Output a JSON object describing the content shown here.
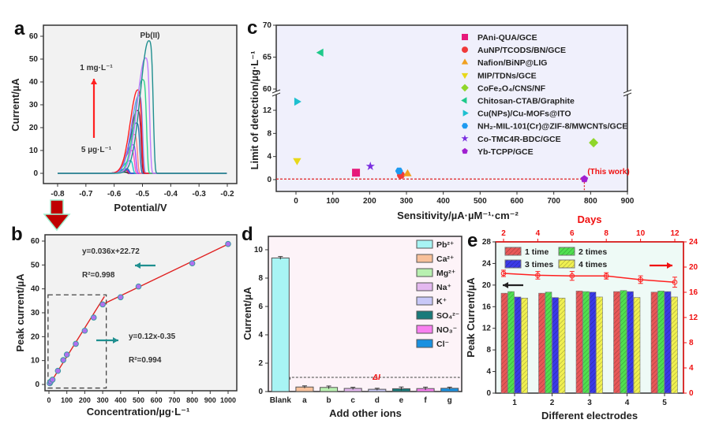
{
  "chart_data": [
    {
      "panel": "a",
      "type": "line",
      "title": "Pb(II)",
      "xlabel": "Potential/V",
      "ylabel": "Current/µA",
      "xlim": [
        -0.85,
        -0.18
      ],
      "ylim": [
        -5,
        65
      ],
      "xticks": [
        "-0.8",
        "-0.7",
        "-0.6",
        "-0.5",
        "-0.4",
        "-0.3",
        "-0.2"
      ],
      "yticks": [
        "0",
        "10",
        "20",
        "30",
        "40",
        "50",
        "60"
      ],
      "annotation_high": "1 mg·L⁻¹",
      "annotation_low": "5 µg·L⁻¹",
      "series": [
        {
          "peak_potential": -0.565,
          "peak_current": 0.5,
          "color": "#222222"
        },
        {
          "peak_potential": -0.562,
          "peak_current": 1.2,
          "color": "#e8195a"
        },
        {
          "peak_potential": -0.56,
          "peak_current": 1.6,
          "color": "#8a2be2"
        },
        {
          "peak_potential": -0.558,
          "peak_current": 2.0,
          "color": "#1e6fd9"
        },
        {
          "peak_potential": -0.545,
          "peak_current": 5.5,
          "color": "#20c7c7"
        },
        {
          "peak_potential": -0.54,
          "peak_current": 10.0,
          "color": "#ff4fc3"
        },
        {
          "peak_potential": -0.535,
          "peak_current": 12.5,
          "color": "#9b4dff"
        },
        {
          "peak_potential": -0.53,
          "peak_current": 17.0,
          "color": "#ff8080"
        },
        {
          "peak_potential": -0.522,
          "peak_current": 22.0,
          "color": "#2b6cb0"
        },
        {
          "peak_potential": -0.518,
          "peak_current": 27.5,
          "color": "#8b1a4a"
        },
        {
          "peak_potential": -0.513,
          "peak_current": 34.0,
          "color": "#7b8cff"
        },
        {
          "peak_potential": -0.517,
          "peak_current": 36.5,
          "color": "#ff2020"
        },
        {
          "peak_potential": -0.5,
          "peak_current": 41.0,
          "color": "#2ed38a"
        },
        {
          "peak_potential": -0.49,
          "peak_current": 50.5,
          "color": "#c07cff"
        },
        {
          "peak_potential": -0.478,
          "peak_current": 58.0,
          "color": "#1f8f8f"
        }
      ]
    },
    {
      "panel": "b",
      "type": "scatter",
      "xlabel": "Concentration/µg·L⁻¹",
      "ylabel": "Peak current/µA",
      "xlim": [
        -15,
        1040
      ],
      "ylim": [
        -2,
        62
      ],
      "xticks": [
        "0",
        "100",
        "200",
        "300",
        "400",
        "500",
        "600",
        "700",
        "800",
        "900",
        "1000"
      ],
      "yticks": [
        "0",
        "10",
        "20",
        "30",
        "40",
        "50",
        "60"
      ],
      "x": [
        5,
        10,
        20,
        50,
        80,
        100,
        150,
        200,
        250,
        300,
        400,
        500,
        800,
        1000
      ],
      "y": [
        0.5,
        1.2,
        2.0,
        5.7,
        10.2,
        12.5,
        17.0,
        22.5,
        28.0,
        33.5,
        36.5,
        41.0,
        50.7,
        58.8
      ],
      "fits": [
        {
          "equation": "y=0.036x+22.72",
          "r2": "R²=0.998",
          "slope": 0.036,
          "intercept": 22.72,
          "range": [
            300,
            1000
          ]
        },
        {
          "equation": "y=0.12x-0.35",
          "r2": "R²=0.994",
          "slope": 0.12,
          "intercept": -0.35,
          "range": [
            0,
            310
          ]
        }
      ]
    },
    {
      "panel": "c",
      "type": "scatter",
      "xlabel": "Sensitivity/µA·µM⁻¹·cm⁻²",
      "ylabel": "Limit of detection/µg·L⁻¹",
      "xlim": [
        -50,
        900
      ],
      "ylim_lower": [
        -1,
        14.5
      ],
      "ylim_upper": [
        60,
        70
      ],
      "xticks": [
        "0",
        "100",
        "200",
        "300",
        "400",
        "500",
        "600",
        "700",
        "800",
        "900"
      ],
      "yticks_lower": [
        "0",
        "4",
        "8",
        "12"
      ],
      "yticks_upper": [
        "60",
        "65",
        "70"
      ],
      "annotation": "(This work)",
      "points": [
        {
          "label": "PAni-QUA/GCE",
          "x": 163,
          "y": 1.2,
          "marker": "square",
          "color": "#e6197a"
        },
        {
          "label": "AuNP/TCODS/BN/GCE",
          "x": 285,
          "y": 0.8,
          "marker": "circle",
          "color": "#f03a3a"
        },
        {
          "label": "Nafion/BiNP@LIG",
          "x": 303,
          "y": 1.0,
          "marker": "triangle-up",
          "color": "#f0a020"
        },
        {
          "label": "MIP/TDNs/GCE",
          "x": 3,
          "y": 3.3,
          "marker": "triangle-down",
          "color": "#e8d81a"
        },
        {
          "label": "CoFe₂O₄/CNS/NF",
          "x": 808,
          "y": 6.4,
          "marker": "diamond",
          "color": "#8fd62a"
        },
        {
          "label": "Chitosan-CTAB/Graphite",
          "x": 68,
          "y": 65.7,
          "marker": "triangle-left",
          "color": "#1fc98a"
        },
        {
          "label": "Cu(NPs)/Cu-MOFs@ITO",
          "x": 2,
          "y": 13.5,
          "marker": "triangle-right",
          "color": "#1ec0d0"
        },
        {
          "label": "NH₂-MIL-101(Cr)@ZIF-8/MWCNTs/GCE",
          "x": 280,
          "y": 1.5,
          "marker": "hexagon",
          "color": "#1e9af0"
        },
        {
          "label": "Co-TMC4R-BDC/GCE",
          "x": 202,
          "y": 2.3,
          "marker": "star",
          "color": "#7a2ee0"
        },
        {
          "label": "Yb-TCPP/GCE",
          "x": 783,
          "y": 0.1,
          "marker": "pentagon",
          "color": "#a020d0"
        }
      ]
    },
    {
      "panel": "d",
      "type": "bar",
      "xlabel": "Add other ions",
      "ylabel": "Current/µA",
      "ylim": [
        0,
        11
      ],
      "yticks": [
        "0",
        "2",
        "4",
        "6",
        "8",
        "10"
      ],
      "annotation": "ΔI",
      "categories": [
        "Blank",
        "a",
        "b",
        "c",
        "d",
        "e",
        "f",
        "g"
      ],
      "values": [
        9.42,
        0.32,
        0.29,
        0.22,
        0.16,
        0.2,
        0.21,
        0.23
      ],
      "errors": [
        0.1,
        0.08,
        0.1,
        0.08,
        0.07,
        0.12,
        0.1,
        0.08
      ],
      "legend": [
        "Pb²⁺",
        "Ca²⁺",
        "Mg²⁺",
        "Na⁺",
        "K⁺",
        "SO₄²⁻",
        "NO₃⁻",
        "Cl⁻"
      ],
      "colors": [
        "#a8f4f4",
        "#f8c09a",
        "#b8f0b0",
        "#e4b8f0",
        "#c8c8f8",
        "#1a7a7a",
        "#f880f0",
        "#1a90e0"
      ]
    },
    {
      "panel": "e",
      "type": "bar",
      "xlabel": "Different electrodes",
      "ylabel": "Peak Current/µA",
      "top_xlabel": "Days",
      "ylim": [
        0,
        28
      ],
      "ylim_right": [
        0,
        24
      ],
      "yticks": [
        "0",
        "4",
        "8",
        "12",
        "16",
        "20",
        "24",
        "28"
      ],
      "yticks_right": [
        "0",
        "4",
        "8",
        "12",
        "16",
        "20",
        "24"
      ],
      "top_xticks": [
        "2",
        "4",
        "6",
        "8",
        "10",
        "12"
      ],
      "categories": [
        "1",
        "2",
        "3",
        "4",
        "5"
      ],
      "series": [
        {
          "name": "1 time",
          "color": "#e85858",
          "values": [
            18.5,
            18.5,
            18.9,
            18.8,
            18.7
          ]
        },
        {
          "name": "2 times",
          "color": "#50e050",
          "values": [
            18.8,
            18.7,
            18.8,
            19.0,
            18.9
          ]
        },
        {
          "name": "3 times",
          "color": "#3a3ae8",
          "values": [
            17.8,
            17.7,
            18.7,
            18.8,
            18.8
          ]
        },
        {
          "name": "4 times",
          "color": "#f0f050",
          "values": [
            17.6,
            17.6,
            17.8,
            17.7,
            17.8
          ]
        }
      ],
      "days_line": {
        "x": [
          2,
          4,
          6,
          8,
          10,
          12
        ],
        "y": [
          19.0,
          18.7,
          18.6,
          18.6,
          18.0,
          17.6
        ],
        "errors": [
          0.5,
          0.6,
          0.7,
          0.5,
          0.6,
          0.8
        ],
        "color": "#ff2020"
      }
    }
  ],
  "panel_labels": [
    "a",
    "b",
    "c",
    "d",
    "e"
  ]
}
